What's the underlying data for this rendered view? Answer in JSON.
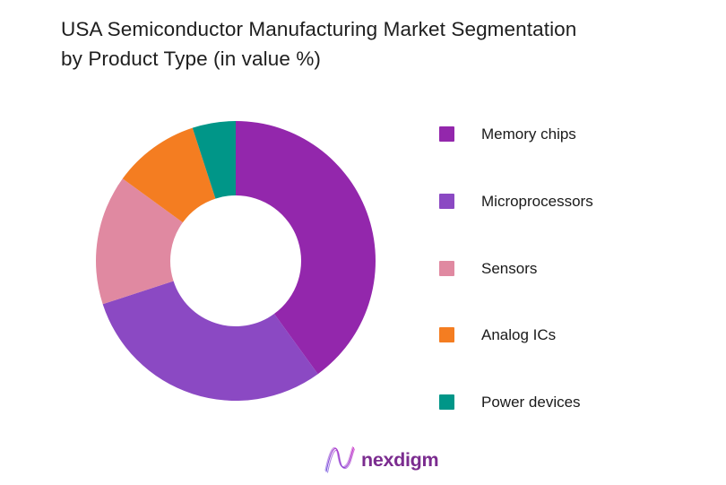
{
  "title": {
    "line1": "USA Semiconductor Manufacturing Market Segmentation",
    "line2": "by Product Type (in value %)",
    "color": "#1e1e1e"
  },
  "chart_data": {
    "type": "pie",
    "subtype": "donut",
    "title": "USA Semiconductor Manufacturing Market Segmentation by Product Type (in value %)",
    "unit": "value %",
    "categories": [
      "Memory chips",
      "Microprocessors",
      "Sensors",
      "Analog ICs",
      "Power devices"
    ],
    "values": [
      40,
      30,
      15,
      10,
      5
    ],
    "colors": [
      "#9327AC",
      "#8B49C3",
      "#E089A1",
      "#F47D21",
      "#009688"
    ],
    "start_angle_deg": 0,
    "direction": "clockwise",
    "inner_radius_ratio": 0.47,
    "legend_position": "right",
    "background": "#ffffff"
  },
  "logo": {
    "text": "nexdigm",
    "text_color": "#7b2c8f",
    "mark": "waveform-n-icon",
    "mark_color_start": "#6a4bdb",
    "mark_color_end": "#c52bc4"
  }
}
